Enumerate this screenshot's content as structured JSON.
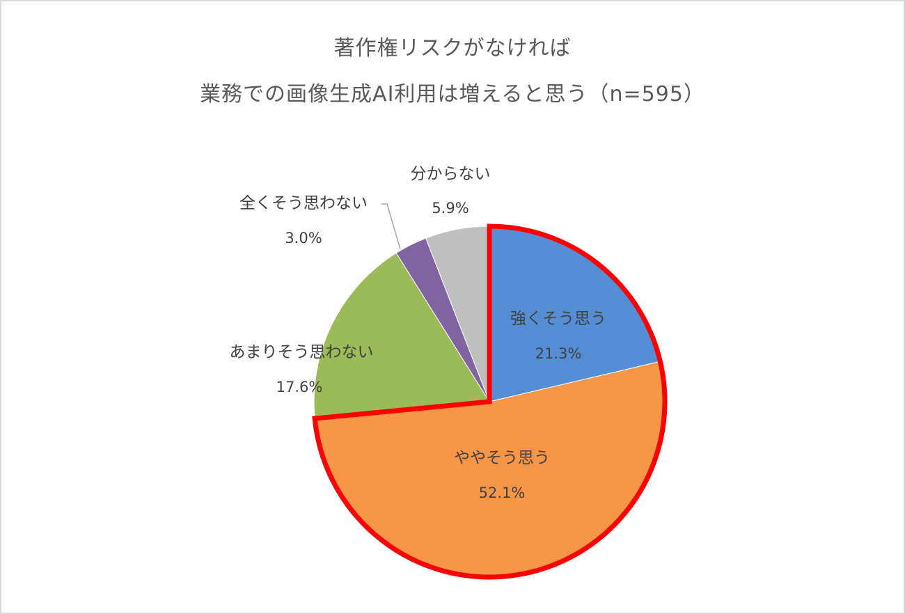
{
  "chart": {
    "title_line1": "著作権リスクがなければ",
    "title_line2": "業務での画像生成AI利用は増えると思う（n=595）",
    "highlight_color": "#ff0000"
  },
  "labels": {
    "strongly_agree": {
      "name": "強くそう思う",
      "pct": "21.3%"
    },
    "somewhat_agree": {
      "name": "ややそう思う",
      "pct": "52.1%"
    },
    "somewhat_disagree": {
      "name": "あまりそう思わない",
      "pct": "17.6%"
    },
    "strongly_disagree": {
      "name": "全くそう思わない",
      "pct": "3.0%"
    },
    "dont_know": {
      "name": "分からない",
      "pct": "5.9%"
    }
  },
  "chart_data": {
    "type": "pie",
    "title": "著作権リスクがなければ 業務での画像生成AI利用は増えると思う（n=595）",
    "n": 595,
    "categories": [
      "強くそう思う",
      "ややそう思う",
      "あまりそう思わない",
      "全くそう思わない",
      "分からない"
    ],
    "values": [
      21.3,
      52.1,
      17.6,
      3.0,
      5.9
    ],
    "colors": [
      "#558ed5",
      "#f79646",
      "#9bbb59",
      "#8064a2",
      "#bfbfbf"
    ],
    "start_angle": "12 o'clock, clockwise",
    "highlighted": [
      "強くそう思う",
      "ややそう思う"
    ],
    "highlight_outline": "#ff0000",
    "legend": "none (data labels)"
  }
}
